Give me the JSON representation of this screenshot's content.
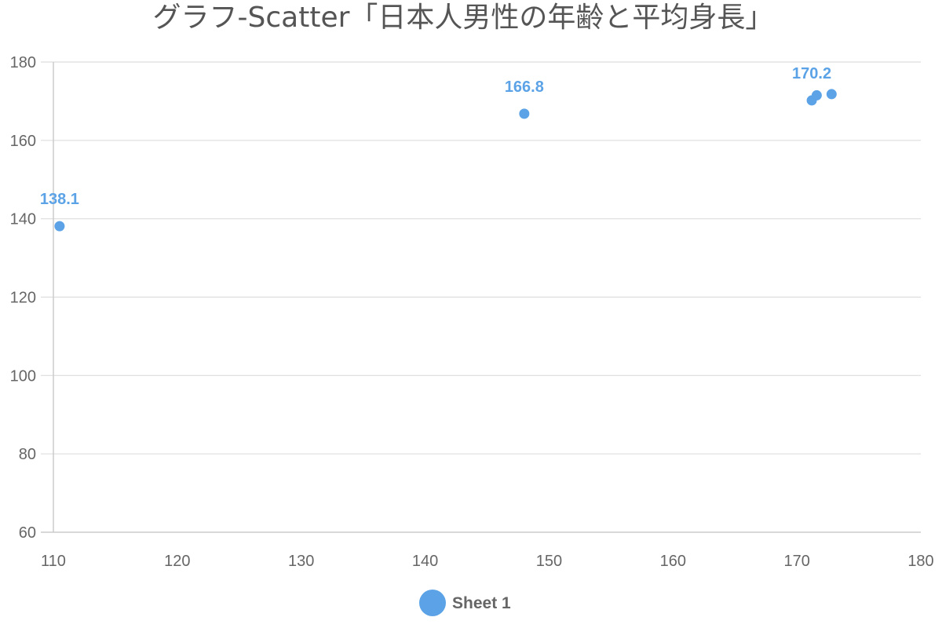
{
  "chart_data": {
    "type": "scatter",
    "title": "グラフ-Scatter「日本人男性の年齢と平均身長」",
    "xlabel": "",
    "ylabel": "",
    "xlim": [
      110,
      180
    ],
    "ylim": [
      60,
      180
    ],
    "x_ticks": [
      110,
      120,
      130,
      140,
      150,
      160,
      170,
      180
    ],
    "y_ticks": [
      60,
      80,
      100,
      120,
      140,
      160,
      180
    ],
    "grid": true,
    "legend_position": "bottom",
    "series": [
      {
        "name": "Sheet 1",
        "color": "#5ba3e6",
        "points": [
          {
            "x": 110.5,
            "y": 138.1,
            "label": "138.1"
          },
          {
            "x": 148.0,
            "y": 166.8,
            "label": "166.8"
          },
          {
            "x": 171.2,
            "y": 170.2,
            "label": "170.2"
          },
          {
            "x": 171.6,
            "y": 171.5,
            "label": ""
          },
          {
            "x": 172.8,
            "y": 171.8,
            "label": ""
          }
        ]
      }
    ]
  }
}
